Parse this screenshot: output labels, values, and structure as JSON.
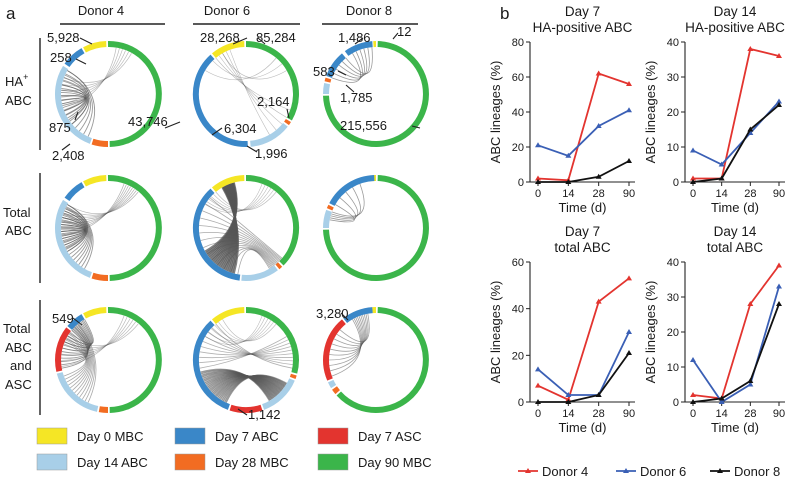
{
  "panel_labels": {
    "a": "a",
    "b": "b"
  },
  "donors": [
    "Donor 4",
    "Donor 6",
    "Donor 8"
  ],
  "row_labels": {
    "ha": [
      "HA",
      "+",
      "ABC"
    ],
    "total": [
      "Total",
      "ABC"
    ],
    "asc": [
      "Total",
      "ABC",
      "and",
      "ASC"
    ]
  },
  "circle_counts": {
    "d4_day0": "5,928",
    "d4_day14": "258",
    "d4_day14b": "875",
    "d4_day90": "43,746",
    "d4_day28": "2,408",
    "d6_day0": "28,268",
    "d6_day90": "85,284",
    "d6_day28": "2,164",
    "d6_day7": "6,304",
    "d6_day14": "1,996",
    "d8_day7": "1,486",
    "d8_day0": "12",
    "d8_day14": "583",
    "d8_day28": "1,785",
    "d8_day90": "215,556",
    "d4_asc_day7": "549",
    "d6_asc_day7asc": "1,142",
    "d8_asc_day7": "3,280"
  },
  "legend": [
    {
      "label": "Day 0 MBC",
      "color": "#f5e625"
    },
    {
      "label": "Day 7 ABC",
      "color": "#3a87c8"
    },
    {
      "label": "Day 7 ASC",
      "color": "#e3342f"
    },
    {
      "label": "Day 14 ABC",
      "color": "#a8cfe8"
    },
    {
      "label": "Day 28 MBC",
      "color": "#f26c22"
    },
    {
      "label": "Day 90 MBC",
      "color": "#3bb54a"
    }
  ],
  "chart_data": [
    {
      "type": "line",
      "title": "Day 7",
      "subtitle": "HA-positive ABC",
      "xlabel": "Time (d)",
      "ylabel": "ABC lineages (%)",
      "categories": [
        "0",
        "14",
        "28",
        "90"
      ],
      "ylim": [
        0,
        80
      ],
      "yticks": [
        0,
        20,
        40,
        60,
        80
      ],
      "series": [
        {
          "name": "Donor 4",
          "color": "#e3342f",
          "values": [
            2,
            1,
            62,
            56
          ]
        },
        {
          "name": "Donor 6",
          "color": "#3a5fb5",
          "values": [
            21,
            15,
            32,
            41
          ]
        },
        {
          "name": "Donor 8",
          "color": "#111111",
          "values": [
            0,
            0,
            3,
            12
          ]
        }
      ]
    },
    {
      "type": "line",
      "title": "Day 14",
      "subtitle": "HA-positive ABC",
      "xlabel": "Time (d)",
      "ylabel": "ABC lineages (%)",
      "categories": [
        "0",
        "14",
        "28",
        "90"
      ],
      "ylim": [
        0,
        40
      ],
      "yticks": [
        0,
        10,
        20,
        30,
        40
      ],
      "series": [
        {
          "name": "Donor 4",
          "color": "#e3342f",
          "values": [
            1,
            1,
            38,
            36
          ]
        },
        {
          "name": "Donor 6",
          "color": "#3a5fb5",
          "values": [
            9,
            5,
            14,
            23
          ]
        },
        {
          "name": "Donor 8",
          "color": "#111111",
          "values": [
            0,
            1,
            15,
            22
          ]
        }
      ]
    },
    {
      "type": "line",
      "title": "Day 7",
      "subtitle": "total ABC",
      "xlabel": "Time (d)",
      "ylabel": "ABC lineages (%)",
      "categories": [
        "0",
        "14",
        "28",
        "90"
      ],
      "ylim": [
        0,
        60
      ],
      "yticks": [
        0,
        20,
        40,
        60
      ],
      "series": [
        {
          "name": "Donor 4",
          "color": "#e3342f",
          "values": [
            7,
            1,
            43,
            53
          ]
        },
        {
          "name": "Donor 6",
          "color": "#3a5fb5",
          "values": [
            14,
            3,
            3,
            30
          ]
        },
        {
          "name": "Donor 8",
          "color": "#111111",
          "values": [
            0,
            0,
            3,
            21
          ]
        }
      ]
    },
    {
      "type": "line",
      "title": "Day 14",
      "subtitle": "total ABC",
      "xlabel": "Time (d)",
      "ylabel": "ABC lineages (%)",
      "categories": [
        "0",
        "14",
        "28",
        "90"
      ],
      "ylim": [
        0,
        40
      ],
      "yticks": [
        0,
        10,
        20,
        30,
        40
      ],
      "series": [
        {
          "name": "Donor 4",
          "color": "#e3342f",
          "values": [
            2,
            1,
            28,
            39
          ]
        },
        {
          "name": "Donor 6",
          "color": "#3a5fb5",
          "values": [
            12,
            0,
            5,
            33
          ]
        },
        {
          "name": "Donor 8",
          "color": "#111111",
          "values": [
            0,
            1,
            6,
            28
          ]
        }
      ]
    }
  ],
  "line_legend": [
    {
      "name": "Donor 4",
      "color": "#e3342f"
    },
    {
      "name": "Donor 6",
      "color": "#3a5fb5"
    },
    {
      "name": "Donor 8",
      "color": "#111111"
    }
  ]
}
